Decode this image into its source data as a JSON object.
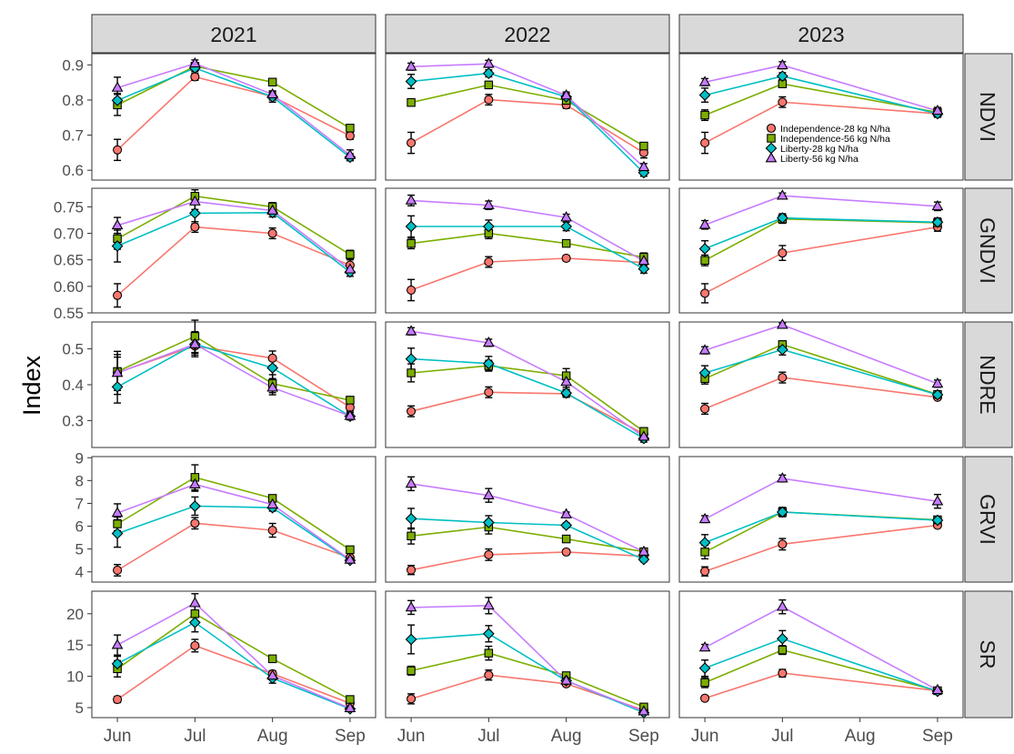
{
  "ylabel": "Index",
  "years": [
    "2021",
    "2022",
    "2023"
  ],
  "months": [
    "Jun",
    "Jul",
    "Aug",
    "Sep"
  ],
  "indices": [
    "NDVI",
    "GNDVI",
    "NDRE",
    "GRVI",
    "SR"
  ],
  "legend": [
    {
      "label": "Independence-28 kg N/ha",
      "color": "#F8766D",
      "shape": "circle"
    },
    {
      "label": "Independence-56 kg N/ha",
      "color": "#7CAE00",
      "shape": "square"
    },
    {
      "label": "Liberty-28 kg N/ha",
      "color": "#00BFC4",
      "shape": "diamond"
    },
    {
      "label": "Liberty-56 kg N/ha",
      "color": "#C77CFF",
      "shape": "triangle"
    }
  ],
  "chart_data": {
    "type": "line",
    "facet_rows": [
      "NDVI",
      "GNDVI",
      "NDRE",
      "GRVI",
      "SR"
    ],
    "facet_cols": [
      "2021",
      "2022",
      "2023"
    ],
    "x": [
      "Jun",
      "Jul",
      "Aug",
      "Sep"
    ],
    "series_names": [
      "Independence-28 kg N/ha",
      "Independence-56 kg N/ha",
      "Liberty-28 kg N/ha",
      "Liberty-56 kg N/ha"
    ],
    "panels": {
      "NDVI": {
        "ylim": [
          0.572,
          0.932
        ],
        "ticks": [
          0.6,
          0.7,
          0.8,
          0.9
        ],
        "tick_labels": [
          "0.6",
          "0.7",
          "0.8",
          "0.9"
        ],
        "values": {
          "2021": [
            [
              0.658,
              0.866,
              0.81,
              0.698
            ],
            [
              0.786,
              0.896,
              0.851,
              0.72
            ],
            [
              0.799,
              0.891,
              0.809,
              0.637
            ],
            [
              0.835,
              0.904,
              0.816,
              0.643
            ]
          ],
          "2022": [
            [
              0.678,
              0.801,
              0.786,
              0.65
            ],
            [
              0.793,
              0.843,
              0.799,
              0.669
            ],
            [
              0.853,
              0.876,
              0.809,
              0.593
            ],
            [
              0.895,
              0.903,
              0.813,
              0.609
            ]
          ],
          "2023": [
            [
              0.678,
              0.794,
              null,
              0.761
            ],
            [
              0.757,
              0.846,
              null,
              0.765
            ],
            [
              0.814,
              0.868,
              null,
              0.761
            ],
            [
              0.851,
              0.899,
              null,
              0.769
            ]
          ]
        },
        "errors": {
          "2021": [
            [
              0.03,
              0.01,
              0.01,
              0.01
            ],
            [
              0.03,
              0.01,
              0.01,
              0.01
            ],
            [
              0.02,
              0.01,
              0.015,
              0.01
            ],
            [
              0.03,
              0.01,
              0.01,
              0.015
            ]
          ],
          "2022": [
            [
              0.03,
              0.015,
              0.01,
              0.015
            ],
            [
              0.01,
              0.01,
              0.01,
              0.01
            ],
            [
              0.02,
              0.01,
              0.01,
              0.01
            ],
            [
              0.01,
              0.01,
              0.01,
              0.01
            ]
          ],
          "2023": [
            [
              0.03,
              0.015,
              null,
              0.01
            ],
            [
              0.015,
              0.01,
              null,
              0.01
            ],
            [
              0.02,
              0.01,
              null,
              0.01
            ],
            [
              0.01,
              0.01,
              null,
              0.01
            ]
          ]
        }
      },
      "GNDVI": {
        "ylim": [
          0.55,
          0.785
        ],
        "ticks": [
          0.55,
          0.6,
          0.65,
          0.7,
          0.75
        ],
        "tick_labels": [
          "0.55",
          "0.60",
          "0.65",
          "0.70",
          "0.75"
        ],
        "values": {
          "2021": [
            [
              0.583,
              0.712,
              0.7,
              0.64
            ],
            [
              0.69,
              0.77,
              0.75,
              0.66
            ],
            [
              0.676,
              0.738,
              0.739,
              0.627
            ],
            [
              0.715,
              0.76,
              0.743,
              0.632
            ]
          ],
          "2022": [
            [
              0.593,
              0.646,
              0.653,
              0.645
            ],
            [
              0.681,
              0.7,
              0.681,
              0.655
            ],
            [
              0.713,
              0.713,
              0.713,
              0.633
            ],
            [
              0.762,
              0.753,
              0.73,
              0.648
            ]
          ],
          "2023": [
            [
              0.587,
              0.663,
              null,
              0.712
            ],
            [
              0.649,
              0.727,
              null,
              0.72
            ],
            [
              0.671,
              0.729,
              null,
              0.721
            ],
            [
              0.716,
              0.771,
              null,
              0.751
            ]
          ]
        },
        "errors": {
          "2021": [
            [
              0.022,
              0.01,
              0.01,
              0.01
            ],
            [
              0.02,
              0.012,
              0.008,
              0.008
            ],
            [
              0.03,
              0.02,
              0.008,
              0.008
            ],
            [
              0.015,
              0.015,
              0.008,
              0.008
            ]
          ],
          "2022": [
            [
              0.02,
              0.01,
              0.005,
              0.008
            ],
            [
              0.01,
              0.01,
              0.005,
              0.008
            ],
            [
              0.02,
              0.012,
              0.008,
              0.008
            ],
            [
              0.01,
              0.008,
              0.006,
              0.008
            ]
          ],
          "2023": [
            [
              0.018,
              0.014,
              null,
              0.008
            ],
            [
              0.01,
              0.008,
              null,
              0.008
            ],
            [
              0.015,
              0.008,
              null,
              0.008
            ],
            [
              0.008,
              0.005,
              null,
              0.008
            ]
          ]
        }
      },
      "NDRE": {
        "ylim": [
          0.225,
          0.575
        ],
        "ticks": [
          0.3,
          0.4,
          0.5
        ],
        "tick_labels": [
          "0.3",
          "0.4",
          "0.5"
        ],
        "values": {
          "2021": [
            [
              0.434,
              0.508,
              0.474,
              0.337
            ],
            [
              0.437,
              0.535,
              0.403,
              0.357
            ],
            [
              0.394,
              0.513,
              0.447,
              0.312
            ],
            [
              0.433,
              0.513,
              0.392,
              0.313
            ]
          ],
          "2022": [
            [
              0.326,
              0.379,
              0.375,
              0.263
            ],
            [
              0.433,
              0.453,
              0.425,
              0.27
            ],
            [
              0.472,
              0.459,
              0.377,
              0.25
            ],
            [
              0.549,
              0.517,
              0.408,
              0.255
            ]
          ],
          "2023": [
            [
              0.333,
              0.42,
              null,
              0.365
            ],
            [
              0.417,
              0.512,
              null,
              0.373
            ],
            [
              0.433,
              0.498,
              null,
              0.372
            ],
            [
              0.496,
              0.567,
              null,
              0.403
            ]
          ]
        },
        "errors": {
          "2021": [
            [
              0.05,
              0.02,
              0.02,
              0.01
            ],
            [
              0.04,
              0.045,
              0.025,
              0.01
            ],
            [
              0.045,
              0.03,
              0.03,
              0.01
            ],
            [
              0.06,
              0.035,
              0.02,
              0.01
            ]
          ],
          "2022": [
            [
              0.015,
              0.015,
              0.01,
              0.01
            ],
            [
              0.025,
              0.015,
              0.02,
              0.01
            ],
            [
              0.03,
              0.02,
              0.01,
              0.01
            ],
            [
              0.01,
              0.01,
              0.015,
              0.01
            ]
          ],
          "2023": [
            [
              0.015,
              0.015,
              null,
              0.005
            ],
            [
              0.015,
              0.01,
              null,
              0.005
            ],
            [
              0.02,
              0.015,
              null,
              0.005
            ],
            [
              0.01,
              0.005,
              null,
              0.01
            ]
          ]
        }
      },
      "GRVI": {
        "ylim": [
          3.55,
          9.05
        ],
        "ticks": [
          4,
          5,
          6,
          7,
          8,
          9
        ],
        "tick_labels": [
          "4",
          "5",
          "6",
          "7",
          "8",
          "9"
        ],
        "values": {
          "2021": [
            [
              4.07,
              6.13,
              5.82,
              4.62
            ],
            [
              6.1,
              8.14,
              7.22,
              4.97
            ],
            [
              5.68,
              6.88,
              6.81,
              4.5
            ],
            [
              6.58,
              7.83,
              6.95,
              4.53
            ]
          ],
          "2022": [
            [
              4.08,
              4.75,
              4.87,
              4.68
            ],
            [
              5.57,
              5.96,
              5.44,
              4.88
            ],
            [
              6.33,
              6.16,
              6.04,
              4.54
            ],
            [
              7.86,
              7.35,
              6.52,
              4.88
            ]
          ],
          "2023": [
            [
              4.02,
              5.21,
              null,
              6.04
            ],
            [
              4.87,
              6.62,
              null,
              6.28
            ],
            [
              5.28,
              6.62,
              null,
              6.26
            ],
            [
              6.31,
              8.09,
              null,
              7.09
            ]
          ]
        },
        "errors": {
          "2021": [
            [
              0.25,
              0.25,
              0.3,
              0.1
            ],
            [
              0.3,
              0.55,
              0.15,
              0.1
            ],
            [
              0.6,
              0.4,
              0.15,
              0.1
            ],
            [
              0.4,
              0.3,
              0.15,
              0.1
            ]
          ],
          "2022": [
            [
              0.2,
              0.25,
              0.1,
              0.1
            ],
            [
              0.35,
              0.3,
              0.1,
              0.1
            ],
            [
              0.45,
              0.3,
              0.1,
              0.1
            ],
            [
              0.3,
              0.3,
              0.1,
              0.1
            ]
          ],
          "2023": [
            [
              0.2,
              0.25,
              null,
              0.1
            ],
            [
              0.3,
              0.2,
              null,
              0.1
            ],
            [
              0.35,
              0.2,
              null,
              0.1
            ],
            [
              0.15,
              0.15,
              null,
              0.3
            ]
          ]
        }
      },
      "SR": {
        "ylim": [
          3.4,
          23.6
        ],
        "ticks": [
          5,
          10,
          15,
          20
        ],
        "tick_labels": [
          "5",
          "10",
          "15",
          "20"
        ],
        "values": {
          "2021": [
            [
              6.3,
              14.9,
              10.4,
              5.7
            ],
            [
              11.2,
              20.0,
              12.8,
              6.3
            ],
            [
              12.0,
              18.6,
              9.7,
              4.8
            ],
            [
              15.0,
              21.7,
              10.1,
              4.9
            ]
          ],
          "2022": [
            [
              6.4,
              10.2,
              8.8,
              4.6
            ],
            [
              10.9,
              13.7,
              10.1,
              5.1
            ],
            [
              15.9,
              16.8,
              9.3,
              4.2
            ],
            [
              21.0,
              21.3,
              9.3,
              4.4
            ]
          ],
          "2023": [
            [
              6.5,
              10.5,
              null,
              7.7
            ],
            [
              9.0,
              14.2,
              null,
              7.7
            ],
            [
              11.3,
              16.0,
              null,
              7.6
            ],
            [
              14.6,
              21.1,
              null,
              7.8
            ]
          ]
        },
        "errors": {
          "2021": [
            [
              0.5,
              1.0,
              0.5,
              0.3
            ],
            [
              1.3,
              1.5,
              0.4,
              0.3
            ],
            [
              1.2,
              1.5,
              0.8,
              0.3
            ],
            [
              1.6,
              1.5,
              0.6,
              0.3
            ]
          ],
          "2022": [
            [
              0.8,
              0.8,
              0.4,
              0.3
            ],
            [
              0.7,
              1.1,
              0.5,
              0.3
            ],
            [
              2.3,
              1.3,
              0.4,
              0.3
            ],
            [
              1.1,
              1.3,
              0.4,
              0.3
            ]
          ],
          "2023": [
            [
              0.4,
              0.6,
              null,
              0.3
            ],
            [
              0.8,
              0.7,
              null,
              0.3
            ],
            [
              1.3,
              1.3,
              null,
              0.3
            ],
            [
              0.5,
              1.1,
              null,
              0.3
            ]
          ]
        }
      }
    }
  }
}
